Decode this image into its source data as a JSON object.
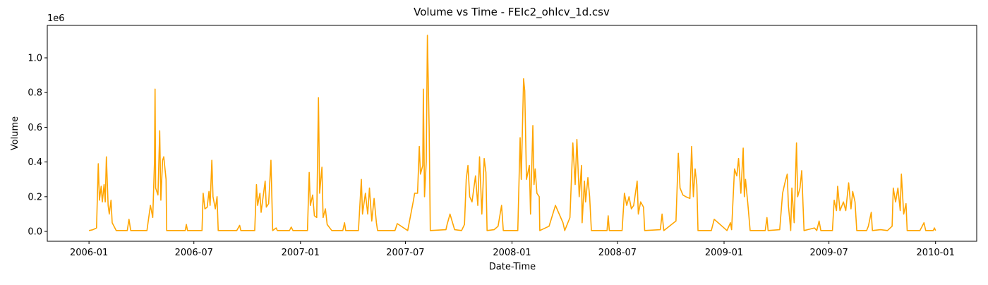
{
  "chart_data": {
    "type": "line",
    "title": "Volume vs Time - FEIc2_ohlcv_1d.csv",
    "x_label": "Date-Time",
    "y_label": "Volume",
    "y_offset_label": "1e6",
    "xlim": [
      13077,
      14681
    ],
    "xticks": [
      {
        "value": 13149,
        "label": "2006-01"
      },
      {
        "value": 13330,
        "label": "2006-07"
      },
      {
        "value": 13514,
        "label": "2007-01"
      },
      {
        "value": 13695,
        "label": "2007-07"
      },
      {
        "value": 13879,
        "label": "2008-01"
      },
      {
        "value": 14061,
        "label": "2008-07"
      },
      {
        "value": 14245,
        "label": "2009-01"
      },
      {
        "value": 14426,
        "label": "2009-07"
      },
      {
        "value": 14610,
        "label": "2010-01"
      }
    ],
    "ylim": [
      -56700,
      1187000
    ],
    "yticks": [
      {
        "value": 0,
        "label": "0.0"
      },
      {
        "value": 200000,
        "label": "0.2"
      },
      {
        "value": 400000,
        "label": "0.4"
      },
      {
        "value": 600000,
        "label": "0.6"
      },
      {
        "value": 800000,
        "label": "0.8"
      },
      {
        "value": 1000000,
        "label": "1.0"
      }
    ],
    "grid": false,
    "series": [
      {
        "color": "#ffa500",
        "x": [
          13149,
          13156,
          13162,
          13165,
          13167,
          13170,
          13172,
          13175,
          13177,
          13179,
          13182,
          13184,
          13187,
          13189,
          13196,
          13215,
          13218,
          13221,
          13249,
          13255,
          13259,
          13262,
          13263,
          13264,
          13268,
          13271,
          13273,
          13276,
          13278,
          13282,
          13283,
          13315,
          13317,
          13319,
          13344,
          13346,
          13349,
          13353,
          13356,
          13358,
          13361,
          13363,
          13367,
          13370,
          13372,
          13404,
          13409,
          13411,
          13435,
          13438,
          13440,
          13444,
          13446,
          13453,
          13455,
          13459,
          13463,
          13466,
          13472,
          13474,
          13495,
          13498,
          13501,
          13526,
          13529,
          13531,
          13535,
          13538,
          13542,
          13545,
          13547,
          13551,
          13553,
          13557,
          13560,
          13568,
          13587,
          13590,
          13592,
          13614,
          13619,
          13621,
          13626,
          13630,
          13633,
          13637,
          13641,
          13645,
          13647,
          13677,
          13681,
          13699,
          13709,
          13711,
          13716,
          13719,
          13721,
          13725,
          13726,
          13728,
          13731,
          13733,
          13736,
          13738,
          13765,
          13767,
          13772,
          13780,
          13792,
          13797,
          13800,
          13803,
          13806,
          13810,
          13816,
          13820,
          13823,
          13827,
          13831,
          13834,
          13836,
          13848,
          13855,
          13861,
          13864,
          13889,
          13893,
          13895,
          13899,
          13901,
          13904,
          13909,
          13911,
          13915,
          13917,
          13919,
          13922,
          13926,
          13927,
          13943,
          13954,
          13967,
          13970,
          13979,
          13984,
          13988,
          13991,
          13995,
          13999,
          14000,
          14004,
          14006,
          14010,
          14013,
          14016,
          14043,
          14045,
          14047,
          14069,
          14073,
          14077,
          14081,
          14085,
          14089,
          14095,
          14097,
          14101,
          14106,
          14108,
          14135,
          14138,
          14141,
          14162,
          14166,
          14169,
          14174,
          14179,
          14186,
          14189,
          14192,
          14195,
          14198,
          14200,
          14223,
          14228,
          14250,
          14256,
          14258,
          14263,
          14267,
          14270,
          14274,
          14278,
          14280,
          14282,
          14286,
          14290,
          14316,
          14319,
          14321,
          14341,
          14346,
          14350,
          14354,
          14356,
          14360,
          14362,
          14366,
          14370,
          14372,
          14376,
          14379,
          14383,
          14401,
          14405,
          14409,
          14412,
          14432,
          14435,
          14439,
          14441,
          14445,
          14451,
          14455,
          14460,
          14464,
          14467,
          14471,
          14474,
          14491,
          14494,
          14499,
          14501,
          14515,
          14527,
          14535,
          14537,
          14541,
          14545,
          14549,
          14551,
          14555,
          14559,
          14561,
          14583,
          14590,
          14593,
          14606,
          14608,
          14610
        ],
        "values": [
          5000,
          10000,
          20000,
          390000,
          180000,
          260000,
          170000,
          270000,
          170000,
          430000,
          150000,
          100000,
          180000,
          50000,
          5000,
          5000,
          70000,
          5000,
          5000,
          150000,
          80000,
          400000,
          820000,
          250000,
          210000,
          580000,
          180000,
          410000,
          430000,
          300000,
          5000,
          5000,
          40000,
          5000,
          5000,
          220000,
          130000,
          140000,
          230000,
          150000,
          410000,
          200000,
          130000,
          200000,
          5000,
          5000,
          35000,
          5000,
          5000,
          270000,
          150000,
          220000,
          110000,
          290000,
          140000,
          160000,
          410000,
          5000,
          20000,
          5000,
          5000,
          25000,
          5000,
          5000,
          340000,
          150000,
          210000,
          90000,
          80000,
          770000,
          220000,
          370000,
          80000,
          130000,
          40000,
          5000,
          5000,
          50000,
          5000,
          5000,
          300000,
          100000,
          220000,
          100000,
          250000,
          60000,
          190000,
          50000,
          5000,
          5000,
          45000,
          5000,
          180000,
          220000,
          220000,
          490000,
          330000,
          380000,
          820000,
          200000,
          400000,
          1130000,
          600000,
          5000,
          10000,
          40000,
          100000,
          10000,
          5000,
          40000,
          300000,
          380000,
          200000,
          170000,
          320000,
          150000,
          430000,
          100000,
          420000,
          340000,
          5000,
          10000,
          30000,
          150000,
          5000,
          5000,
          540000,
          300000,
          880000,
          810000,
          300000,
          380000,
          100000,
          610000,
          270000,
          360000,
          220000,
          200000,
          5000,
          30000,
          150000,
          50000,
          5000,
          80000,
          510000,
          270000,
          530000,
          200000,
          380000,
          50000,
          290000,
          170000,
          310000,
          200000,
          5000,
          5000,
          90000,
          5000,
          5000,
          220000,
          150000,
          200000,
          130000,
          150000,
          290000,
          100000,
          170000,
          140000,
          5000,
          10000,
          100000,
          5000,
          60000,
          450000,
          250000,
          210000,
          200000,
          190000,
          490000,
          200000,
          360000,
          270000,
          5000,
          5000,
          70000,
          5000,
          50000,
          10000,
          360000,
          320000,
          420000,
          220000,
          480000,
          200000,
          300000,
          160000,
          5000,
          5000,
          80000,
          5000,
          10000,
          220000,
          280000,
          330000,
          150000,
          5000,
          250000,
          50000,
          510000,
          200000,
          250000,
          350000,
          5000,
          20000,
          5000,
          60000,
          5000,
          5000,
          180000,
          120000,
          260000,
          120000,
          170000,
          120000,
          280000,
          130000,
          230000,
          170000,
          5000,
          5000,
          30000,
          110000,
          5000,
          10000,
          5000,
          30000,
          250000,
          170000,
          250000,
          120000,
          330000,
          100000,
          160000,
          5000,
          5000,
          50000,
          5000,
          5000,
          20000,
          5000
        ]
      }
    ]
  }
}
